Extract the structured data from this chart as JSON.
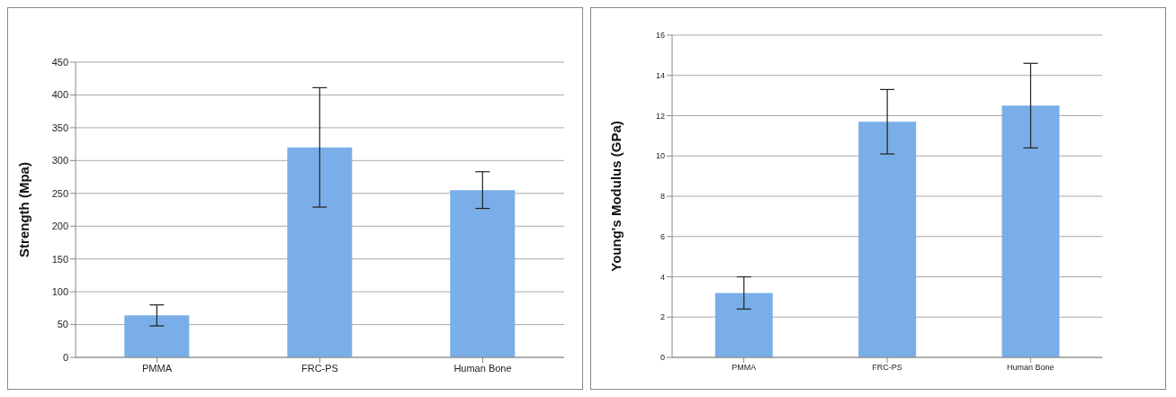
{
  "chart_data": [
    {
      "type": "bar",
      "ylabel": "Strength (Mpa)",
      "categories": [
        "PMMA",
        "FRC-PS",
        "Human Bone"
      ],
      "values": [
        64,
        320,
        255
      ],
      "errors": [
        [
          48,
          80
        ],
        [
          229,
          411
        ],
        [
          227,
          283
        ]
      ],
      "color": "#7aaee8",
      "ylim": [
        0,
        450
      ],
      "yticks": [
        0,
        50,
        100,
        150,
        200,
        250,
        300,
        350,
        400,
        450
      ],
      "grid": "y",
      "legend": false
    },
    {
      "type": "bar",
      "ylabel": "Young's Modulus (GPa)",
      "categories": [
        "PMMA",
        "FRC-PS",
        "Human Bone"
      ],
      "values": [
        3.2,
        11.7,
        12.5
      ],
      "errors": [
        [
          2.4,
          4.0
        ],
        [
          10.1,
          13.3
        ],
        [
          10.4,
          14.6
        ]
      ],
      "color": "#7aaee8",
      "ylim": [
        0,
        16
      ],
      "yticks": [
        0,
        2,
        4,
        6,
        8,
        10,
        12,
        14,
        16
      ],
      "grid": "y",
      "legend": false
    }
  ]
}
